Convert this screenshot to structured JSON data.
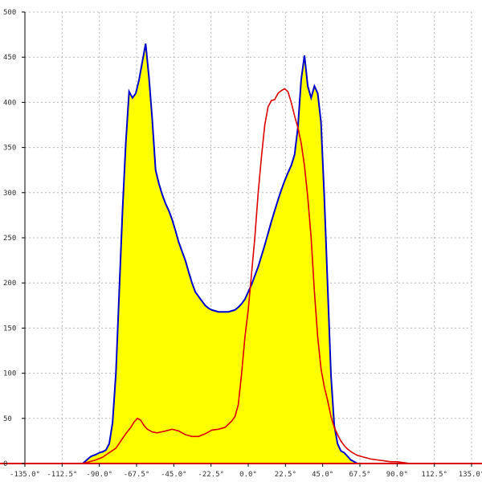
{
  "chart_data": {
    "type": "area",
    "title": "",
    "xlabel": "",
    "ylabel": "",
    "xlim": [
      -135,
      135
    ],
    "ylim": [
      0,
      500
    ],
    "grid": true,
    "x_ticks": [
      -135,
      -112.5,
      -90,
      -67.5,
      -45,
      -22.5,
      0,
      22.5,
      45,
      67.5,
      90,
      112.5,
      135
    ],
    "x_tick_labels": [
      "-135.0°",
      "-112.5°",
      "-90.0°",
      "-67.5°",
      "-45.0°",
      "-22.5°",
      "0.0°",
      "22.5°",
      "45.0°",
      "67.5°",
      "90.0°",
      "112.5°",
      "135.0°"
    ],
    "y_ticks": [
      0,
      50,
      100,
      150,
      200,
      250,
      300,
      350,
      400,
      450,
      500
    ],
    "y_tick_labels": [
      "0",
      "50",
      "100",
      "150",
      "200",
      "250",
      "300",
      "350",
      "400",
      "450",
      "500"
    ],
    "series": [
      {
        "color": "#0000cc",
        "fill": "#ffff00",
        "x": [
          -100,
          -97,
          -95,
          -92,
          -90,
          -88,
          -86,
          -84,
          -82,
          -80,
          -78,
          -76,
          -74,
          -72,
          -70,
          -68,
          -66,
          -64,
          -62,
          -60,
          -58,
          -56,
          -54,
          -52,
          -50,
          -48,
          -46,
          -44,
          -42,
          -40,
          -38,
          -36,
          -34,
          -32,
          -30,
          -28,
          -26,
          -24,
          -22,
          -20,
          -18,
          -16,
          -14,
          -12,
          -10,
          -8,
          -6,
          -4,
          -2,
          0,
          2,
          4,
          6,
          8,
          10,
          12,
          14,
          16,
          18,
          20,
          22,
          24,
          26,
          28,
          30,
          32,
          34,
          36,
          38,
          40,
          42,
          44,
          46,
          48,
          50,
          52,
          54,
          56,
          58,
          60,
          62,
          64,
          66,
          68,
          70,
          72,
          74,
          76,
          78,
          80,
          82,
          84,
          86,
          88,
          90,
          92,
          94,
          96,
          98,
          100,
          102
        ],
        "y": [
          0,
          5,
          8,
          10,
          12,
          13,
          15,
          22,
          45,
          100,
          190,
          280,
          355,
          412,
          405,
          410,
          425,
          445,
          465,
          428,
          380,
          325,
          310,
          298,
          288,
          280,
          270,
          258,
          245,
          235,
          225,
          212,
          200,
          190,
          185,
          180,
          175,
          172,
          170,
          169,
          168,
          168,
          168,
          168,
          169,
          170,
          173,
          177,
          182,
          190,
          198,
          208,
          218,
          230,
          242,
          255,
          268,
          280,
          292,
          303,
          313,
          322,
          330,
          342,
          372,
          425,
          452,
          418,
          405,
          418,
          410,
          378,
          295,
          198,
          98,
          42,
          22,
          14,
          12,
          8,
          4,
          2,
          0,
          0,
          0,
          0,
          0,
          0,
          0,
          0,
          0,
          0,
          0,
          0,
          0,
          0,
          0,
          0,
          0,
          0,
          0
        ]
      },
      {
        "color": "#dd0000",
        "x": [
          -135,
          -105,
          -100,
          -96,
          -92,
          -88,
          -84,
          -80,
          -77,
          -74,
          -71,
          -69,
          -67,
          -65,
          -63,
          -61,
          -58,
          -55,
          -50,
          -46,
          -42,
          -38,
          -34,
          -30,
          -26,
          -22,
          -18,
          -14,
          -10,
          -8,
          -6,
          -4,
          -2,
          0,
          2,
          4,
          6,
          8,
          10,
          12,
          14,
          16,
          18,
          20,
          22,
          24,
          26,
          28,
          30,
          32,
          34,
          36,
          38,
          40,
          42,
          44,
          46,
          48,
          50,
          52,
          54,
          56,
          58,
          60,
          63,
          66,
          70,
          74,
          78,
          82,
          86,
          90,
          94,
          98,
          102,
          135
        ],
        "y": [
          0,
          0,
          0,
          2,
          4,
          7,
          12,
          17,
          25,
          33,
          40,
          46,
          50,
          48,
          42,
          38,
          35,
          34,
          36,
          38,
          36,
          32,
          30,
          30,
          33,
          37,
          38,
          40,
          47,
          52,
          65,
          100,
          140,
          170,
          210,
          250,
          300,
          340,
          375,
          395,
          402,
          403,
          410,
          413,
          415,
          412,
          400,
          385,
          372,
          355,
          330,
          295,
          250,
          190,
          140,
          105,
          85,
          70,
          52,
          40,
          32,
          25,
          20,
          16,
          12,
          9,
          7,
          5,
          4,
          3,
          2,
          2,
          1,
          0,
          0,
          0
        ]
      }
    ]
  }
}
